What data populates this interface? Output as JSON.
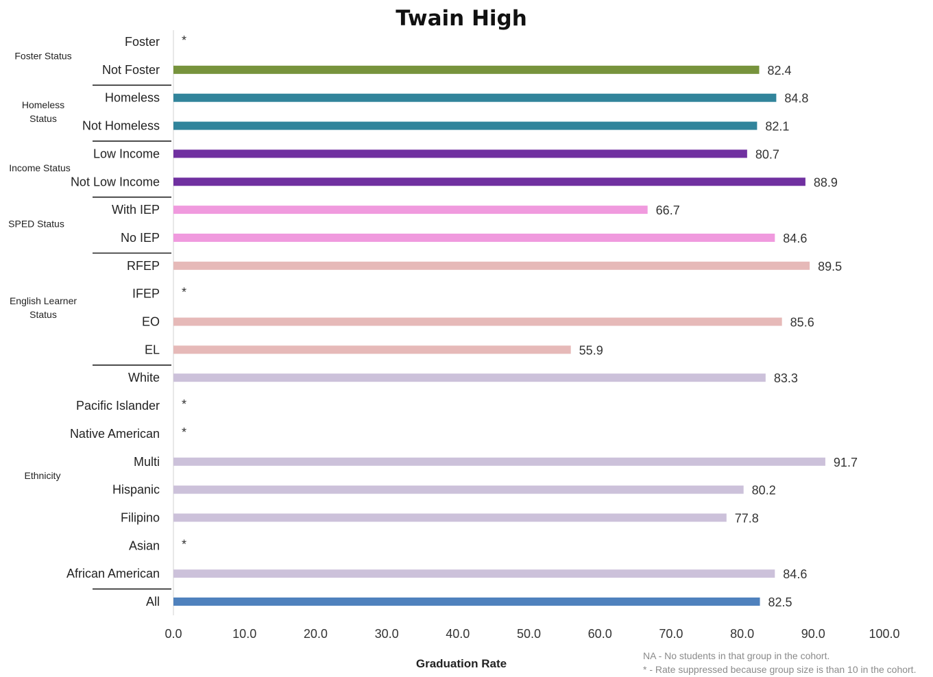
{
  "chart_data": {
    "type": "bar",
    "orientation": "horizontal",
    "title": "Twain High",
    "xlabel": "Graduation Rate",
    "ylabel": "",
    "xlim": [
      0,
      100
    ],
    "xticks": [
      "0.0",
      "10.0",
      "20.0",
      "30.0",
      "40.0",
      "50.0",
      "60.0",
      "70.0",
      "80.0",
      "90.0",
      "100.0"
    ],
    "grid": false,
    "legend": "none",
    "groups": [
      {
        "label": "Foster Status",
        "color": "#77933c",
        "categories": [
          {
            "name": "Foster",
            "value": null,
            "label": "*"
          },
          {
            "name": "Not Foster",
            "value": 82.4,
            "label": "82.4"
          }
        ]
      },
      {
        "label": "Homeless Status",
        "color": "#31849b",
        "categories": [
          {
            "name": "Homeless",
            "value": 84.8,
            "label": "84.8"
          },
          {
            "name": "Not Homeless",
            "value": 82.1,
            "label": "82.1"
          }
        ]
      },
      {
        "label": "Income Status",
        "color": "#7030a0",
        "categories": [
          {
            "name": "Low Income",
            "value": 80.7,
            "label": "80.7"
          },
          {
            "name": "Not Low Income",
            "value": 88.9,
            "label": "88.9"
          }
        ]
      },
      {
        "label": "SPED Status",
        "color": "#f09ade",
        "categories": [
          {
            "name": "With IEP",
            "value": 66.7,
            "label": "66.7"
          },
          {
            "name": "No IEP",
            "value": 84.6,
            "label": "84.6"
          }
        ]
      },
      {
        "label": "English Learner Status",
        "color": "#e6b9b8",
        "categories": [
          {
            "name": "RFEP",
            "value": 89.5,
            "label": "89.5"
          },
          {
            "name": "IFEP",
            "value": null,
            "label": "*"
          },
          {
            "name": "EO",
            "value": 85.6,
            "label": "85.6"
          },
          {
            "name": "EL",
            "value": 55.9,
            "label": "55.9"
          }
        ]
      },
      {
        "label": "Ethnicity",
        "color": "#ccc1da",
        "categories": [
          {
            "name": "White",
            "value": 83.3,
            "label": "83.3"
          },
          {
            "name": "Pacific Islander",
            "value": null,
            "label": "*"
          },
          {
            "name": "Native American",
            "value": null,
            "label": "*"
          },
          {
            "name": "Multi",
            "value": 91.7,
            "label": "91.7"
          },
          {
            "name": "Hispanic",
            "value": 80.2,
            "label": "80.2"
          },
          {
            "name": "Filipino",
            "value": 77.8,
            "label": "77.8"
          },
          {
            "name": "Asian",
            "value": null,
            "label": "*"
          },
          {
            "name": "African American",
            "value": 84.6,
            "label": "84.6"
          }
        ]
      },
      {
        "label": "",
        "color": "#4f81bd",
        "categories": [
          {
            "name": "All",
            "value": 82.5,
            "label": "82.5"
          }
        ]
      }
    ],
    "notes": [
      "NA - No students in that group in the cohort.",
      "* - Rate suppressed because group size is than 10 in the cohort."
    ]
  }
}
